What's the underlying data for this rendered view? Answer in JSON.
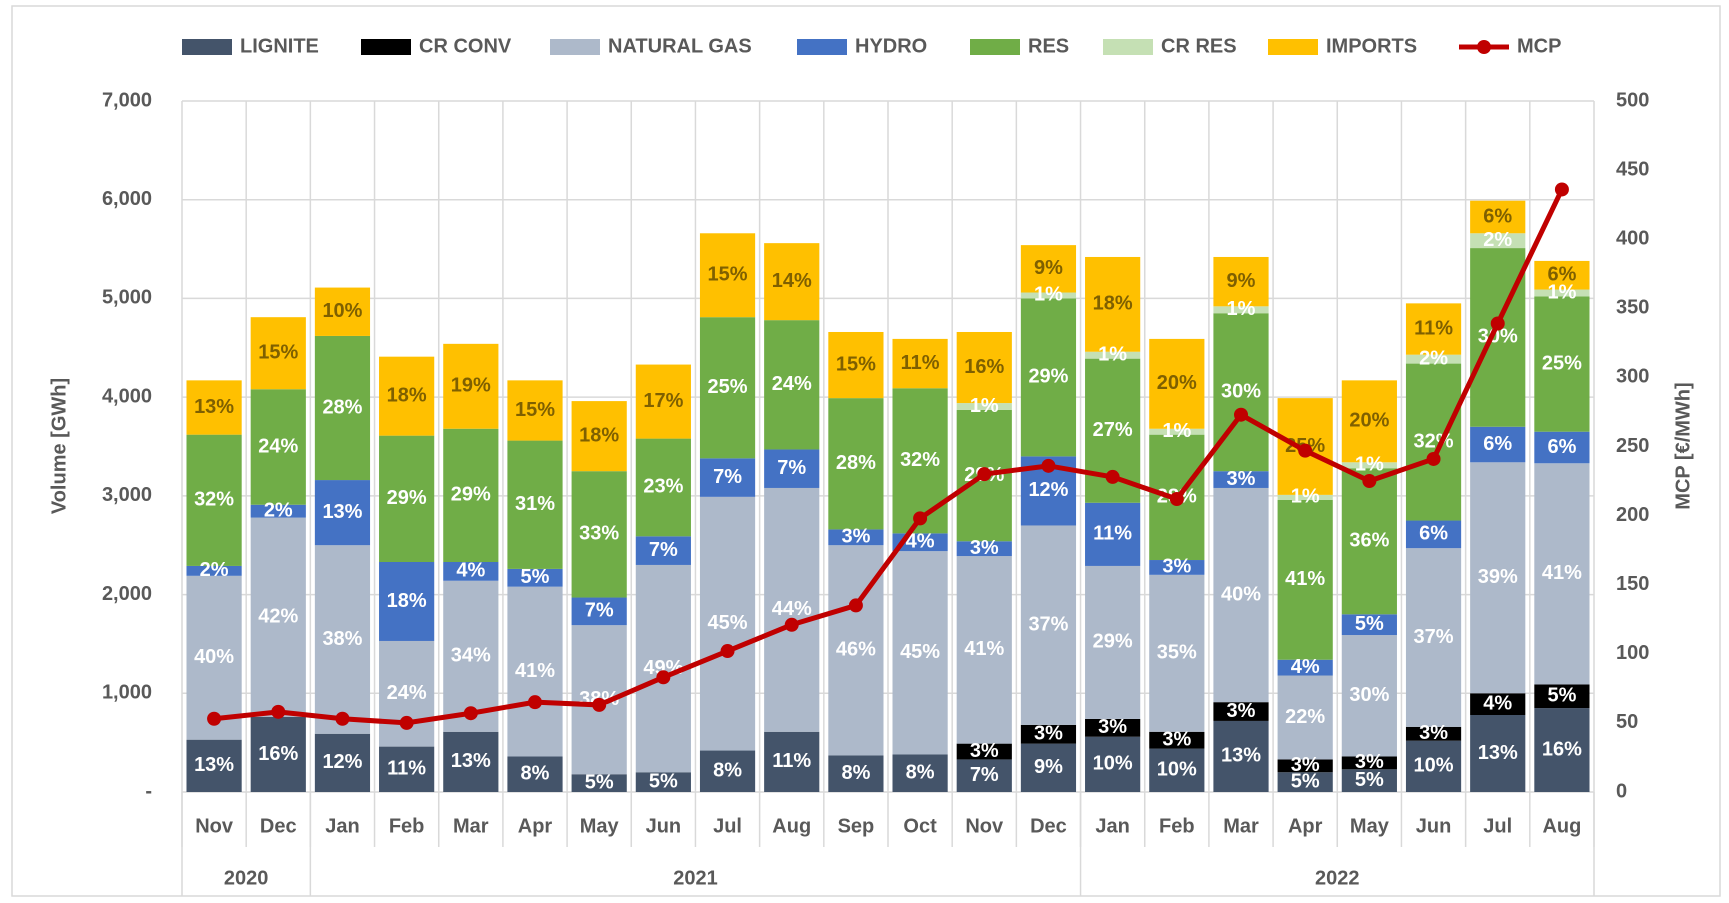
{
  "chart_data": {
    "type": "bar",
    "stacked": true,
    "y_label": "Volume [GWh]",
    "y2_label": "MCP [€/MWh]",
    "categories": [
      "Nov",
      "Dec",
      "Jan",
      "Feb",
      "Mar",
      "Apr",
      "May",
      "Jun",
      "Jul",
      "Aug",
      "Sep",
      "Oct",
      "Nov",
      "Dec",
      "Jan",
      "Feb",
      "Mar",
      "Apr",
      "May",
      "Jun",
      "Jul",
      "Aug"
    ],
    "year_groups": [
      {
        "label": "2020",
        "months": 2
      },
      {
        "label": "2021",
        "months": 12
      },
      {
        "label": "2022",
        "months": 8
      }
    ],
    "ylim": [
      0,
      7000
    ],
    "yticks": [
      {
        "value": 0,
        "label": "-"
      },
      {
        "value": 1000,
        "label": "1,000"
      },
      {
        "value": 2000,
        "label": "2,000"
      },
      {
        "value": 3000,
        "label": "3,000"
      },
      {
        "value": 4000,
        "label": "4,000"
      },
      {
        "value": 5000,
        "label": "5,000"
      },
      {
        "value": 6000,
        "label": "6,000"
      },
      {
        "value": 7000,
        "label": "7,000"
      }
    ],
    "y2lim": [
      0,
      500
    ],
    "y2ticks": [
      0,
      50,
      100,
      150,
      200,
      250,
      300,
      350,
      400,
      450,
      500
    ],
    "grid": true,
    "legend": "top",
    "series": [
      {
        "name": "LIGNITE",
        "color": "#44546a",
        "label_color": "#ffffff",
        "values": [
          530,
          760,
          590,
          460,
          610,
          360,
          180,
          200,
          420,
          610,
          370,
          380,
          330,
          490,
          560,
          440,
          720,
          200,
          230,
          520,
          780,
          850
        ],
        "value_labels": [
          "13%",
          "16%",
          "12%",
          "11%",
          "13%",
          "8%",
          "5%",
          "5%",
          "8%",
          "11%",
          "8%",
          "8%",
          "7%",
          "9%",
          "10%",
          "10%",
          "13%",
          "5%",
          "5%",
          "10%",
          "13%",
          "16%"
        ]
      },
      {
        "name": "CR CONV",
        "color": "#000000",
        "label_color": "#ffffff",
        "values": [
          null,
          null,
          null,
          null,
          null,
          null,
          null,
          null,
          null,
          null,
          null,
          null,
          160,
          190,
          180,
          170,
          190,
          130,
          130,
          140,
          220,
          240
        ],
        "value_labels": [
          null,
          null,
          null,
          null,
          null,
          null,
          null,
          null,
          null,
          null,
          null,
          null,
          "3%",
          "3%",
          "3%",
          "3%",
          "3%",
          "3%",
          "3%",
          "3%",
          "4%",
          "5%"
        ]
      },
      {
        "name": "NATURAL GAS",
        "color": "#adb9ca",
        "label_color": "#ffffff",
        "values": [
          1660,
          2020,
          1910,
          1070,
          1530,
          1720,
          1510,
          2100,
          2570,
          2470,
          2130,
          2060,
          1900,
          2020,
          1550,
          1590,
          2170,
          850,
          1230,
          1810,
          2340,
          2240
        ],
        "value_labels": [
          "40%",
          "42%",
          "38%",
          "24%",
          "34%",
          "41%",
          "38%",
          "49%",
          "45%",
          "44%",
          "46%",
          "45%",
          "41%",
          "37%",
          "29%",
          "35%",
          "40%",
          "22%",
          "30%",
          "37%",
          "39%",
          "41%"
        ]
      },
      {
        "name": "HYDRO",
        "color": "#4472c4",
        "label_color": "#ffffff",
        "values": [
          100,
          130,
          660,
          800,
          190,
          180,
          280,
          290,
          390,
          390,
          160,
          180,
          150,
          700,
          640,
          150,
          170,
          160,
          210,
          280,
          360,
          320
        ],
        "value_labels": [
          "2%",
          "2%",
          "13%",
          "18%",
          "4%",
          "5%",
          "7%",
          "7%",
          "7%",
          "7%",
          "3%",
          "4%",
          "3%",
          "12%",
          "11%",
          "3%",
          "3%",
          "4%",
          "5%",
          "6%",
          "6%",
          "6%"
        ]
      },
      {
        "name": "RES",
        "color": "#70ad47",
        "label_color": "#ffffff",
        "values": [
          1330,
          1170,
          1460,
          1280,
          1350,
          1300,
          1280,
          990,
          1430,
          1310,
          1330,
          1470,
          1330,
          1600,
          1460,
          1270,
          1600,
          1620,
          1480,
          1590,
          1810,
          1370
        ],
        "value_labels": [
          "32%",
          "24%",
          "28%",
          "29%",
          "29%",
          "31%",
          "33%",
          "23%",
          "25%",
          "24%",
          "28%",
          "32%",
          "29%",
          "29%",
          "27%",
          "28%",
          "30%",
          "41%",
          "36%",
          "32%",
          "30%",
          "25%"
        ]
      },
      {
        "name": "CR RES",
        "color": "#c5e0b4",
        "label_color": "#ffffff",
        "values": [
          null,
          null,
          null,
          null,
          null,
          null,
          null,
          null,
          null,
          null,
          null,
          null,
          70,
          60,
          70,
          60,
          70,
          50,
          60,
          90,
          150,
          70
        ],
        "value_labels": [
          null,
          null,
          null,
          null,
          null,
          null,
          null,
          null,
          null,
          null,
          null,
          null,
          "1%",
          "1%",
          "1%",
          "1%",
          "1%",
          "1%",
          "1%",
          "2%",
          "2%",
          "1%"
        ]
      },
      {
        "name": "IMPORTS",
        "color": "#ffc000",
        "label_color": "#7f6000",
        "values": [
          550,
          730,
          490,
          800,
          860,
          610,
          710,
          750,
          850,
          780,
          670,
          500,
          720,
          480,
          960,
          910,
          500,
          980,
          830,
          520,
          330,
          290
        ],
        "value_labels": [
          "13%",
          "15%",
          "10%",
          "18%",
          "19%",
          "15%",
          "18%",
          "17%",
          "15%",
          "14%",
          "15%",
          "11%",
          "16%",
          "9%",
          "18%",
          "20%",
          "9%",
          "25%",
          "20%",
          "11%",
          "6%",
          "6%"
        ]
      },
      {
        "name": "MCP",
        "type": "line",
        "axis": "y2",
        "color": "#c00000",
        "values": [
          53,
          58,
          53,
          50,
          57,
          65,
          63,
          83,
          102,
          121,
          135,
          198,
          230,
          236,
          228,
          212,
          273,
          247,
          225,
          241,
          339,
          436
        ]
      }
    ]
  }
}
